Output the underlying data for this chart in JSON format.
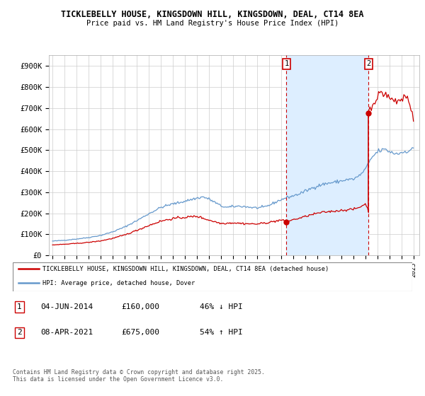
{
  "title1": "TICKLEBELLY HOUSE, KINGSDOWN HILL, KINGSDOWN, DEAL, CT14 8EA",
  "title2": "Price paid vs. HM Land Registry's House Price Index (HPI)",
  "ylim": [
    0,
    950000
  ],
  "yticks": [
    0,
    100000,
    200000,
    300000,
    400000,
    500000,
    600000,
    700000,
    800000,
    900000
  ],
  "ytick_labels": [
    "£0",
    "£100K",
    "£200K",
    "£300K",
    "£400K",
    "£500K",
    "£600K",
    "£700K",
    "£800K",
    "£900K"
  ],
  "hpi_color": "#6699cc",
  "sale_color": "#cc0000",
  "shade_color": "#ddeeff",
  "grid_color": "#cccccc",
  "annotation1": {
    "label": "1",
    "date": "04-JUN-2014",
    "price": "£160,000",
    "pct": "46% ↓ HPI"
  },
  "annotation2": {
    "label": "2",
    "date": "08-APR-2021",
    "price": "£675,000",
    "pct": "54% ↑ HPI"
  },
  "legend_sale": "TICKLEBELLY HOUSE, KINGSDOWN HILL, KINGSDOWN, DEAL, CT14 8EA (detached house)",
  "legend_hpi": "HPI: Average price, detached house, Dover",
  "footer": "Contains HM Land Registry data © Crown copyright and database right 2025.\nThis data is licensed under the Open Government Licence v3.0.",
  "vline1_x": 2014.45,
  "vline2_x": 2021.27,
  "marker1_y": 160000,
  "marker2_y": 675000,
  "xlim_left": 1994.7,
  "xlim_right": 2025.5
}
